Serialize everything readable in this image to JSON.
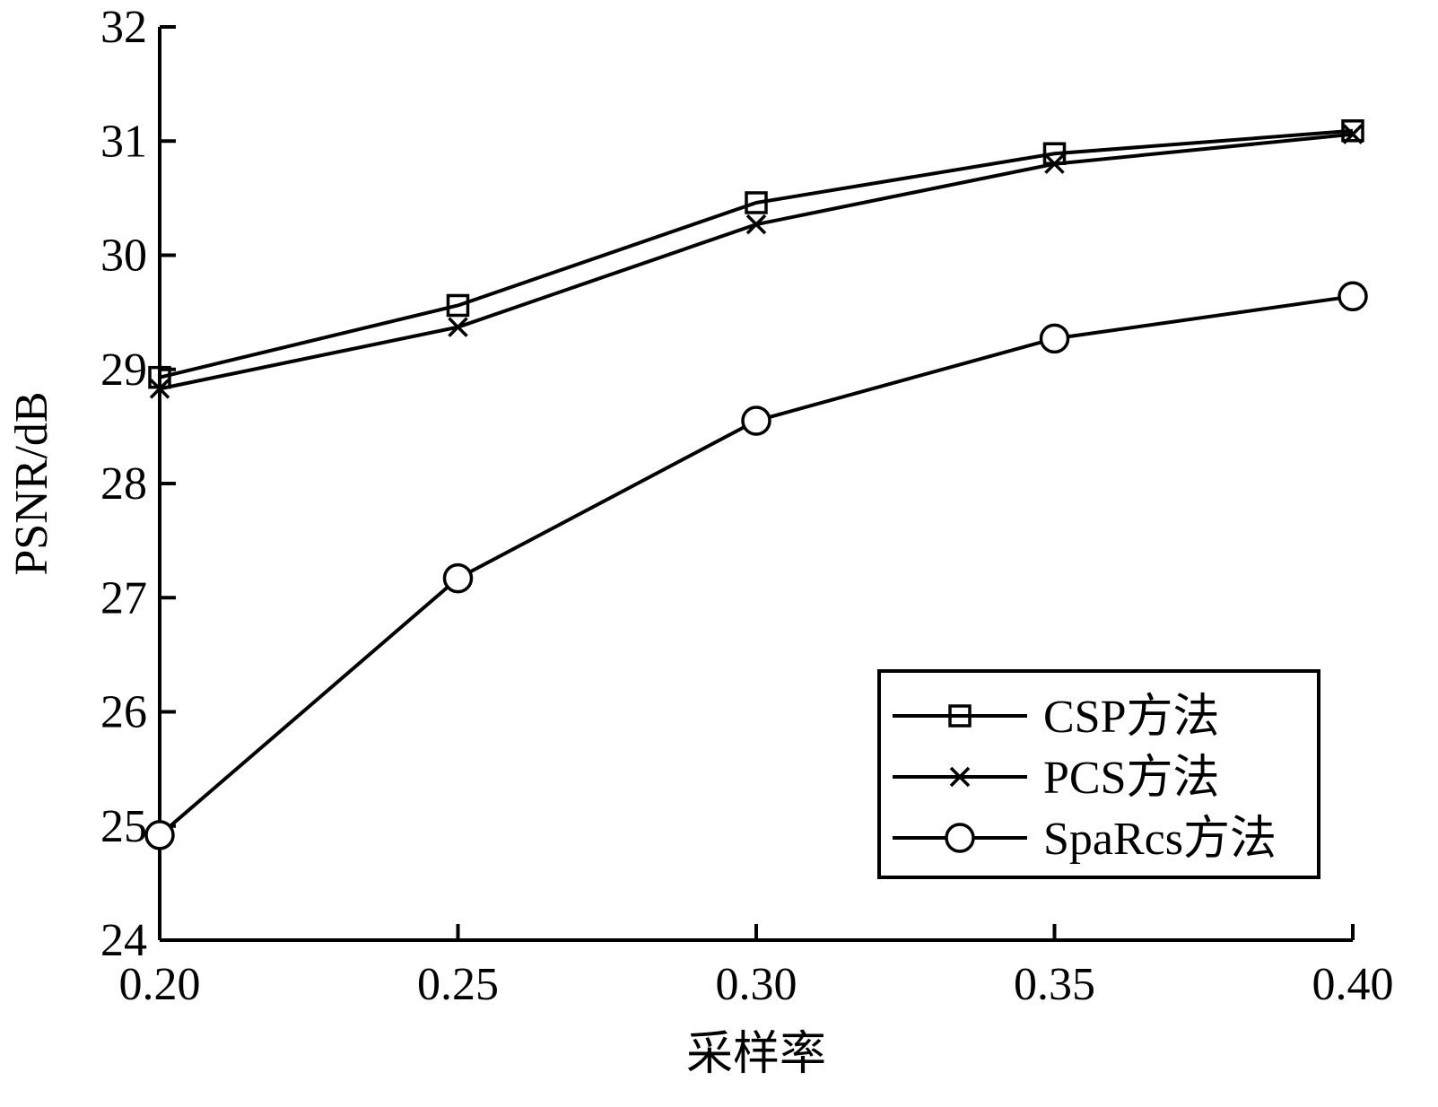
{
  "chart_data": {
    "type": "line",
    "title": "",
    "xlabel": "采样率",
    "ylabel": "PSNR/dB",
    "x": [
      0.2,
      0.25,
      0.3,
      0.35,
      0.4
    ],
    "x_tick_labels": [
      "0.20",
      "0.25",
      "0.30",
      "0.35",
      "0.40"
    ],
    "xlim": [
      0.2,
      0.4
    ],
    "ylim": [
      24,
      32
    ],
    "y_ticks": [
      24,
      25,
      26,
      27,
      28,
      29,
      30,
      31,
      32
    ],
    "y_tick_labels": [
      "24",
      "25",
      "26",
      "27",
      "28",
      "29",
      "30",
      "31",
      "32"
    ],
    "grid": false,
    "legend_position": "bottom-right",
    "series": [
      {
        "name": "CSP方法",
        "marker": "square",
        "values": [
          28.93,
          29.56,
          30.46,
          30.89,
          31.09
        ]
      },
      {
        "name": "PCS方法",
        "marker": "x",
        "values": [
          28.83,
          29.37,
          30.27,
          30.8,
          31.06
        ]
      },
      {
        "name": "SpaRcs方法",
        "marker": "circle",
        "values": [
          24.92,
          27.17,
          28.55,
          29.27,
          29.64
        ]
      }
    ],
    "colors": {
      "line": "#000000",
      "background": "#ffffff"
    }
  }
}
